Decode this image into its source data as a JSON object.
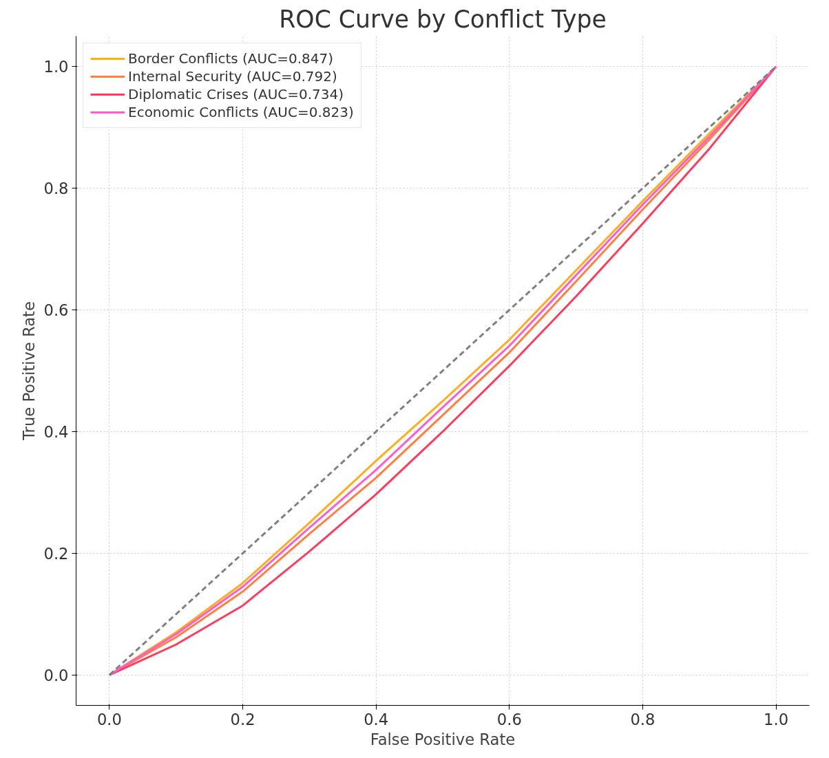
{
  "chart_data": {
    "type": "line",
    "title": "ROC Curve by Conflict Type",
    "xlabel": "False Positive Rate",
    "ylabel": "True Positive Rate",
    "x": [
      0,
      0.1,
      0.2,
      0.3,
      0.4,
      0.5,
      0.6,
      0.7,
      0.8,
      0.9,
      1.0
    ],
    "series": [
      {
        "name": "Border Conflicts (AUC=0.847)",
        "color": "#ffae1a",
        "values": [
          0,
          0.07,
          0.151,
          0.25,
          0.352,
          0.45,
          0.551,
          0.665,
          0.779,
          0.89,
          1.0
        ]
      },
      {
        "name": "Internal Security (AUC=0.792)",
        "color": "#ff7f3f",
        "values": [
          0,
          0.062,
          0.137,
          0.232,
          0.324,
          0.427,
          0.53,
          0.647,
          0.765,
          0.88,
          1.0
        ]
      },
      {
        "name": "Diplomatic Crises (AUC=0.734)",
        "color": "#ff3a5c",
        "values": [
          0,
          0.05,
          0.114,
          0.203,
          0.297,
          0.4,
          0.508,
          0.622,
          0.742,
          0.865,
          1.0
        ]
      },
      {
        "name": "Economic Conflicts (AUC=0.823)",
        "color": "#ff5ccf",
        "values": [
          0,
          0.067,
          0.145,
          0.242,
          0.337,
          0.44,
          0.541,
          0.657,
          0.773,
          0.885,
          1.0
        ]
      },
      {
        "color": "#808080",
        "line_style": "dashed",
        "values": [
          0,
          0.1,
          0.2,
          0.3,
          0.4,
          0.5,
          0.6,
          0.7,
          0.8,
          0.9,
          1.0
        ]
      }
    ],
    "xlim": [
      -0.05,
      1.05
    ],
    "ylim": [
      -0.05,
      1.05
    ],
    "xticks": [
      {
        "value": 0,
        "label": "0.0"
      },
      0.2,
      0.4,
      0.6,
      0.8,
      {
        "value": 1,
        "label": "1.0"
      }
    ],
    "yticks": [
      {
        "value": 0,
        "label": "0.0"
      },
      0.2,
      0.4,
      0.6,
      0.8,
      {
        "value": 1,
        "label": "1.0"
      }
    ],
    "grid": true,
    "legend": "top left",
    "line_style": "solid",
    "marker": "none"
  }
}
